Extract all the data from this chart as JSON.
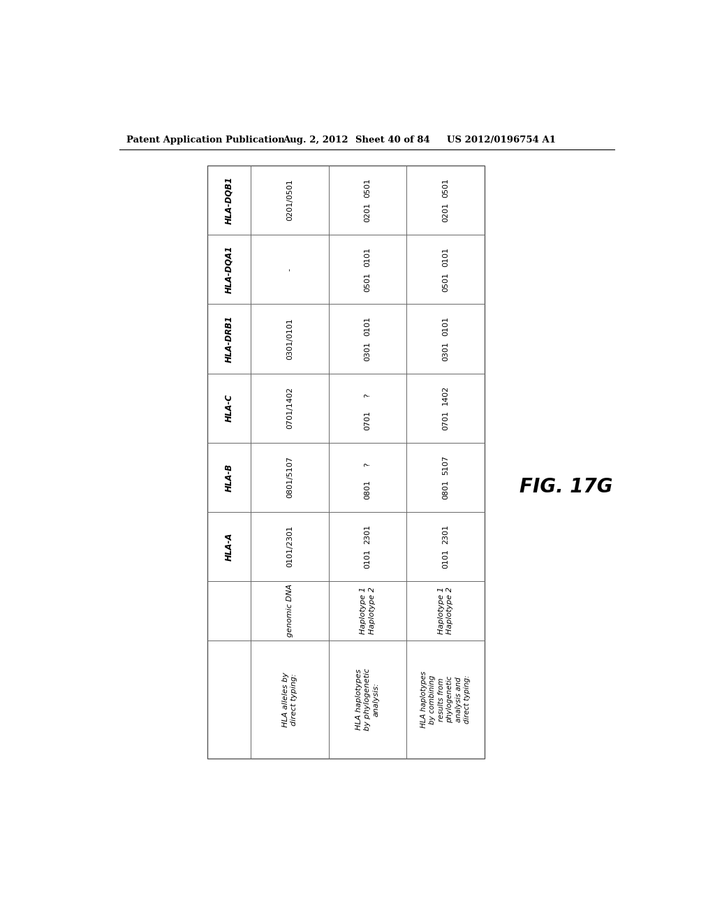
{
  "header_text": "Patent Application Publication",
  "date_text": "Aug. 2, 2012",
  "sheet_text": "Sheet 40 of 84",
  "patent_text": "US 2012/0196754 A1",
  "fig_label": "FIG. 17G",
  "table": {
    "col_headers": [
      "HLA-A",
      "HLA-B",
      "HLA-C",
      "HLA-DRB1",
      "HLA-DQA1",
      "HLA-DQB1"
    ],
    "row1_label": "HLA alleles by\ndirect typing:",
    "row1_sublabel": "genomic DNA",
    "row1": [
      "0101/2301",
      "0801/5107",
      "0701/1402",
      "0301/0101",
      "-",
      "0201/0501"
    ],
    "row2_label": "HLA haplotypes\nby phylogenetic\nanalysis:",
    "row2_sublabel": "Haplotype 1\nHaplotype 2",
    "row2_h1": [
      "2301",
      "?",
      "?",
      "0101",
      "0101",
      "0501"
    ],
    "row2_h2": [
      "0101",
      "0801",
      "0701",
      "0301",
      "0501",
      "0201"
    ],
    "row3_label": "HLA haplotypes\nby combining\nresults from\nphylogenetic\nanalysis and\ndirect typing:",
    "row3_sublabel": "Haplotype 1\nHaplotype 2",
    "row3_h1": [
      "2301",
      "5107",
      "1402",
      "0101",
      "0101",
      "0501"
    ],
    "row3_h2": [
      "0101",
      "0801",
      "0701",
      "0301",
      "0501",
      "0201"
    ]
  },
  "background_color": "#ffffff",
  "text_color": "#000000",
  "border_color": "#666666"
}
